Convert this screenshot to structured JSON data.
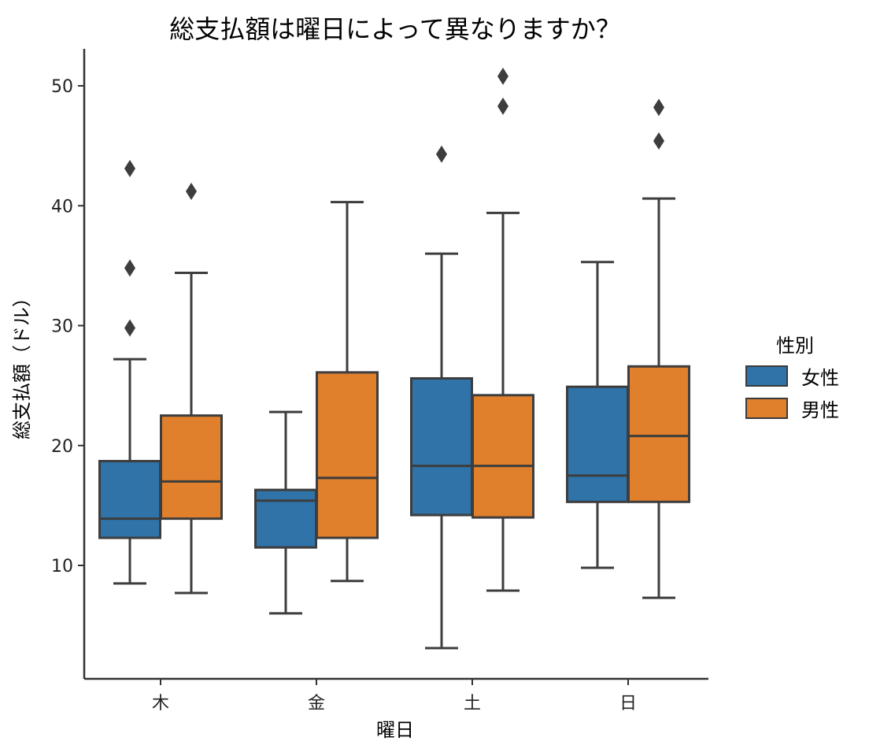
{
  "chart_data": {
    "type": "boxplot",
    "title": "総支払額は曜日によって異なりますか？",
    "xlabel": "曜日",
    "ylabel": "総支払額（ドル）",
    "ylim": [
      0,
      53
    ],
    "yticks": [
      10,
      20,
      30,
      40,
      50
    ],
    "categories": [
      "木",
      "金",
      "土",
      "日"
    ],
    "legend": {
      "title": "性別",
      "placement": "right",
      "entries": [
        "女性",
        "男性"
      ]
    },
    "grid": false,
    "series": [
      {
        "name": "女性",
        "color": "#2f73a8",
        "boxes": [
          {
            "whisker_low": 8.5,
            "q1": 12.3,
            "median": 13.9,
            "q3": 18.7,
            "whisker_high": 27.2,
            "outliers": [
              29.8,
              34.8,
              43.1
            ]
          },
          {
            "whisker_low": 6.0,
            "q1": 11.5,
            "median": 15.4,
            "q3": 16.3,
            "whisker_high": 22.8,
            "outliers": []
          },
          {
            "whisker_low": 3.1,
            "q1": 14.2,
            "median": 18.3,
            "q3": 25.6,
            "whisker_high": 36.0,
            "outliers": [
              44.3
            ]
          },
          {
            "whisker_low": 9.8,
            "q1": 15.3,
            "median": 17.5,
            "q3": 24.9,
            "whisker_high": 35.3,
            "outliers": []
          }
        ]
      },
      {
        "name": "男性",
        "color": "#e07f2c",
        "boxes": [
          {
            "whisker_low": 7.7,
            "q1": 13.9,
            "median": 17.0,
            "q3": 22.5,
            "whisker_high": 34.4,
            "outliers": [
              41.2
            ]
          },
          {
            "whisker_low": 8.7,
            "q1": 12.3,
            "median": 17.3,
            "q3": 26.1,
            "whisker_high": 40.3,
            "outliers": []
          },
          {
            "whisker_low": 7.9,
            "q1": 14.0,
            "median": 18.3,
            "q3": 24.2,
            "whisker_high": 39.4,
            "outliers": [
              48.3,
              50.8
            ]
          },
          {
            "whisker_low": 7.3,
            "q1": 15.3,
            "median": 20.8,
            "q3": 26.6,
            "whisker_high": 40.6,
            "outliers": [
              45.4,
              48.2
            ]
          }
        ]
      }
    ]
  }
}
